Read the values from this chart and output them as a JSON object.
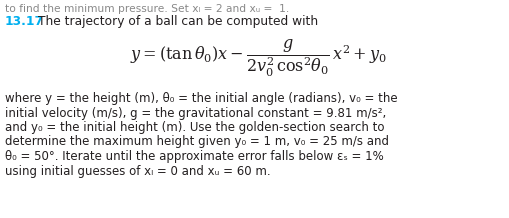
{
  "bg_color": "#ffffff",
  "top_gray_text": "to find the minimum pressure. Set xₗ = 2 and xᵤ =  1.",
  "problem_number": "13.17",
  "problem_number_color": "#00b0f0",
  "title_text": "The trajectory of a ball can be computed with",
  "body_lines": [
    "where y = the height (m), θ₀ = the initial angle (radians), v₀ = the",
    "initial velocity (m/s), g = the gravitational constant = 9.81 m/s²,",
    "and y₀ = the initial height (m). Use the golden-section search to",
    "determine the maximum height given y₀ = 1 m, v₀ = 25 m/s and",
    "θ₀ = 50°. Iterate until the approximate error falls below εₛ = 1%",
    "using initial guesses of xₗ = 0 and xᵤ = 60 m."
  ],
  "font_size_body": 8.5,
  "font_size_title": 8.8,
  "font_size_formula": 9.8,
  "text_color": "#231f20",
  "gray_color": "#888888"
}
